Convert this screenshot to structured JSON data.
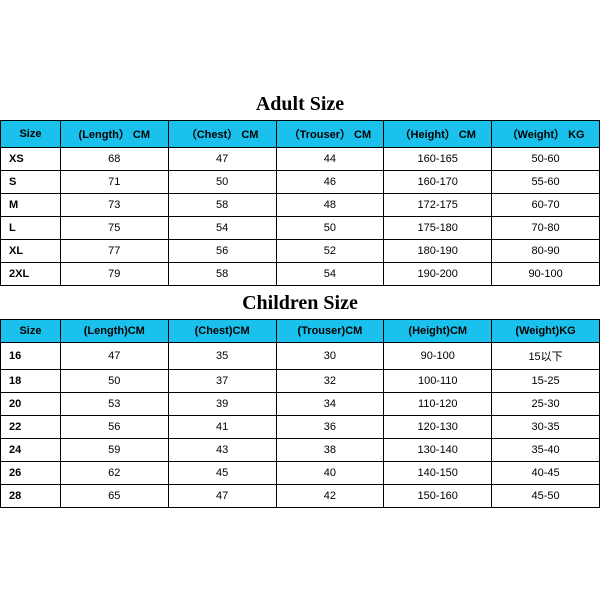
{
  "header_bg_color": "#1bc1ed",
  "border_color": "#000000",
  "text_color": "#000000",
  "adult": {
    "title": "Adult Size",
    "columns": [
      "Size",
      "(Length） CM",
      "（Chest） CM",
      "（Trouser） CM",
      "（Height） CM",
      "（Weight） KG"
    ],
    "rows": [
      [
        "XS",
        "68",
        "47",
        "44",
        "160-165",
        "50-60"
      ],
      [
        "S",
        "71",
        "50",
        "46",
        "160-170",
        "55-60"
      ],
      [
        "M",
        "73",
        "58",
        "48",
        "172-175",
        "60-70"
      ],
      [
        "L",
        "75",
        "54",
        "50",
        "175-180",
        "70-80"
      ],
      [
        "XL",
        "77",
        "56",
        "52",
        "180-190",
        "80-90"
      ],
      [
        "2XL",
        "79",
        "58",
        "54",
        "190-200",
        "90-100"
      ]
    ]
  },
  "children": {
    "title": "Children Size",
    "columns": [
      "Size",
      "(Length)CM",
      "(Chest)CM",
      "(Trouser)CM",
      "(Height)CM",
      "(Weight)KG"
    ],
    "rows": [
      [
        "16",
        "47",
        "35",
        "30",
        "90-100",
        "15以下"
      ],
      [
        "18",
        "50",
        "37",
        "32",
        "100-110",
        "15-25"
      ],
      [
        "20",
        "53",
        "39",
        "34",
        "110-120",
        "25-30"
      ],
      [
        "22",
        "56",
        "41",
        "36",
        "120-130",
        "30-35"
      ],
      [
        "24",
        "59",
        "43",
        "38",
        "130-140",
        "35-40"
      ],
      [
        "26",
        "62",
        "45",
        "40",
        "140-150",
        "40-45"
      ],
      [
        "28",
        "65",
        "47",
        "42",
        "150-160",
        "45-50"
      ]
    ]
  }
}
